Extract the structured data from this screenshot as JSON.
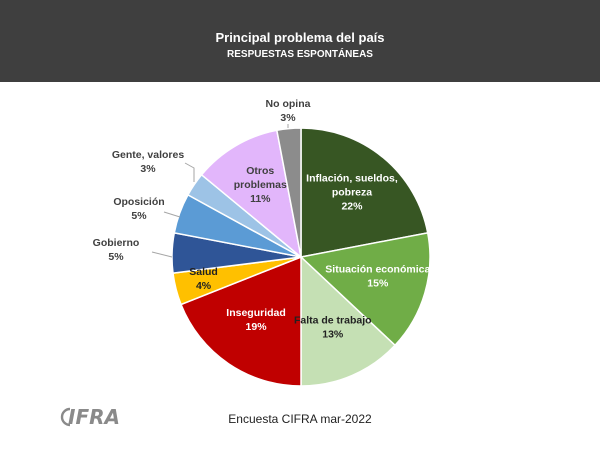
{
  "header": {
    "title": "Principal problema del país",
    "subtitle": "RESPUESTAS ESPONTÁNEAS"
  },
  "footer": {
    "note": "Encuesta CIFRA mar-2022",
    "logo_text": "IFRA"
  },
  "colors": {
    "header_bg": "#3f3f3f"
  },
  "chart_data": {
    "type": "pie",
    "title": "Principal problema del país",
    "subtitle": "RESPUESTAS ESPONTÁNEAS",
    "unit": "%",
    "slices": [
      {
        "label": [
          "Inflación, sueldos,",
          "pobreza"
        ],
        "value": 22,
        "color": "#375623",
        "text_color": "#ffffff",
        "label_pos": "inside"
      },
      {
        "label": [
          "Situación económica"
        ],
        "value": 15,
        "color": "#70ad47",
        "text_color": "#ffffff",
        "label_pos": "inside"
      },
      {
        "label": [
          "Falta de trabajo"
        ],
        "value": 13,
        "color": "#c5e0b4",
        "text_color": "#222222",
        "label_pos": "inside"
      },
      {
        "label": [
          "Inseguridad"
        ],
        "value": 19,
        "color": "#c00000",
        "text_color": "#ffffff",
        "label_pos": "inside"
      },
      {
        "label": [
          "Salud"
        ],
        "value": 4,
        "color": "#ffc000",
        "text_color": "#222222",
        "label_pos": "inside"
      },
      {
        "label": [
          "Gobierno"
        ],
        "value": 5,
        "color": "#2f5597",
        "text_color": "#404040",
        "label_pos": "outside"
      },
      {
        "label": [
          "Oposición"
        ],
        "value": 5,
        "color": "#5b9bd5",
        "text_color": "#404040",
        "label_pos": "outside"
      },
      {
        "label": [
          "Gente, valores"
        ],
        "value": 3,
        "color": "#9dc3e6",
        "text_color": "#404040",
        "label_pos": "outside"
      },
      {
        "label": [
          "Otros",
          "problemas"
        ],
        "value": 11,
        "color": "#e2b6fb",
        "text_color": "#404040",
        "label_pos": "inside"
      },
      {
        "label": [
          "No opina"
        ],
        "value": 3,
        "color": "#8c8c8c",
        "text_color": "#404040",
        "label_pos": "outside"
      }
    ]
  }
}
